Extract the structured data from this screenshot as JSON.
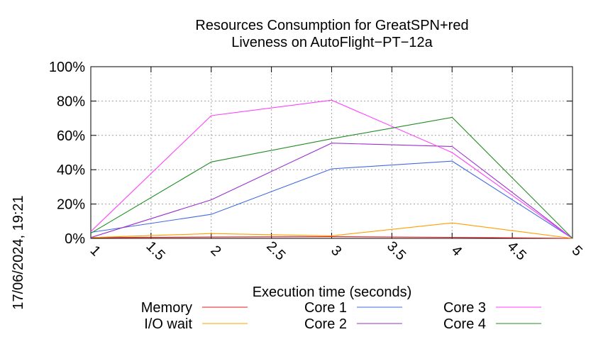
{
  "chart_data": {
    "type": "line",
    "title_line1": "Resources Consumption for GreatSPN+red",
    "title_line2": "Liveness on AutoFlight−PT−12a",
    "xlabel": "Execution time (seconds)",
    "ylabel": "",
    "side_label": "17/06/2024, 19:21",
    "xlim": [
      1,
      5
    ],
    "ylim": [
      0,
      100
    ],
    "x_ticks": [
      "1",
      "1.5",
      "2",
      "2.5",
      "3",
      "3.5",
      "4",
      "4.5",
      "5"
    ],
    "y_ticks": [
      "0%",
      "20%",
      "40%",
      "60%",
      "80%",
      "100%"
    ],
    "grid": true,
    "legend_position": "bottom",
    "series": [
      {
        "name": "Memory",
        "color": "#e41a1c",
        "x": [
          1,
          2,
          3,
          4,
          5
        ],
        "y": [
          0.5,
          0.8,
          1.0,
          0.6,
          0.0
        ]
      },
      {
        "name": "I/O wait",
        "color": "#ff9f00",
        "x": [
          1,
          2,
          3,
          4,
          5
        ],
        "y": [
          0.5,
          2.8,
          1.5,
          9.0,
          0.0
        ]
      },
      {
        "name": "Core 1",
        "color": "#4169e1",
        "x": [
          1,
          2,
          3,
          4,
          5
        ],
        "y": [
          3.5,
          14.0,
          40.5,
          45.0,
          0.0
        ]
      },
      {
        "name": "Core 2",
        "color": "#9932cc",
        "x": [
          1,
          2,
          3,
          4,
          5
        ],
        "y": [
          0.5,
          22.5,
          55.5,
          53.5,
          0.0
        ]
      },
      {
        "name": "Core 3",
        "color": "#ff40ff",
        "x": [
          1,
          2,
          3,
          4,
          5
        ],
        "y": [
          4.0,
          71.5,
          80.5,
          50.0,
          0.0
        ]
      },
      {
        "name": "Core 4",
        "color": "#228b22",
        "x": [
          1,
          2,
          3,
          4,
          5
        ],
        "y": [
          3.0,
          44.5,
          58.0,
          70.5,
          0.0
        ]
      }
    ]
  }
}
